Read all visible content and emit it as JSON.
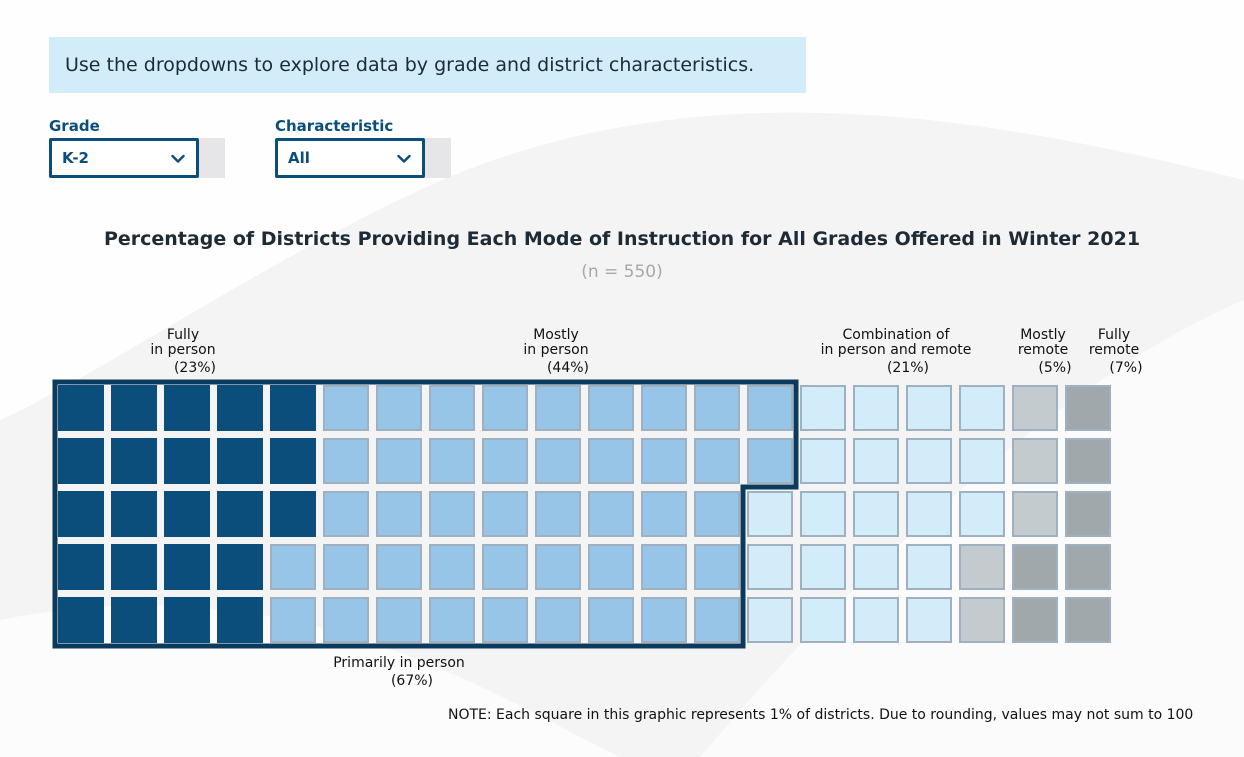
{
  "banner": {
    "text": "Use the dropdowns to explore data by grade and district characteristics."
  },
  "filters": {
    "grade": {
      "label": "Grade",
      "value": "K-2"
    },
    "characteristic": {
      "label": "Characteristic",
      "value": "All"
    }
  },
  "chart_data": {
    "type": "waffle",
    "title": "Percentage of Districts Providing Each Mode of Instruction for All Grades Offered in Winter 2021",
    "subtitle": "(n = 550)",
    "unit_per_square": 1,
    "categories": [
      {
        "name_lines": [
          "Fully",
          "in person"
        ],
        "pct_label": "(23%)",
        "value": 23,
        "color": "#0b4e7c"
      },
      {
        "name_lines": [
          "Mostly",
          "in person"
        ],
        "pct_label": "(44%)",
        "value": 44,
        "color": "#97c5e7"
      },
      {
        "name_lines": [
          "Combination of",
          "in person and remote"
        ],
        "pct_label": "(21%)",
        "value": 21,
        "color": "#d2ecfa"
      },
      {
        "name_lines": [
          "Mostly",
          "remote"
        ],
        "pct_label": "(5%)",
        "value": 5,
        "color": "#c4cbcf"
      },
      {
        "name_lines": [
          "Fully",
          "remote"
        ],
        "pct_label": "(7%)",
        "value": 7,
        "color": "#a1a8ac"
      }
    ],
    "group": {
      "name": "Primarily in person",
      "pct_label": "(67%)",
      "value": 67,
      "border_color": "#0b3a5c"
    },
    "note": "NOTE: Each square in this graphic represents 1% of districts. Due to rounding, values may not sum to 100."
  }
}
